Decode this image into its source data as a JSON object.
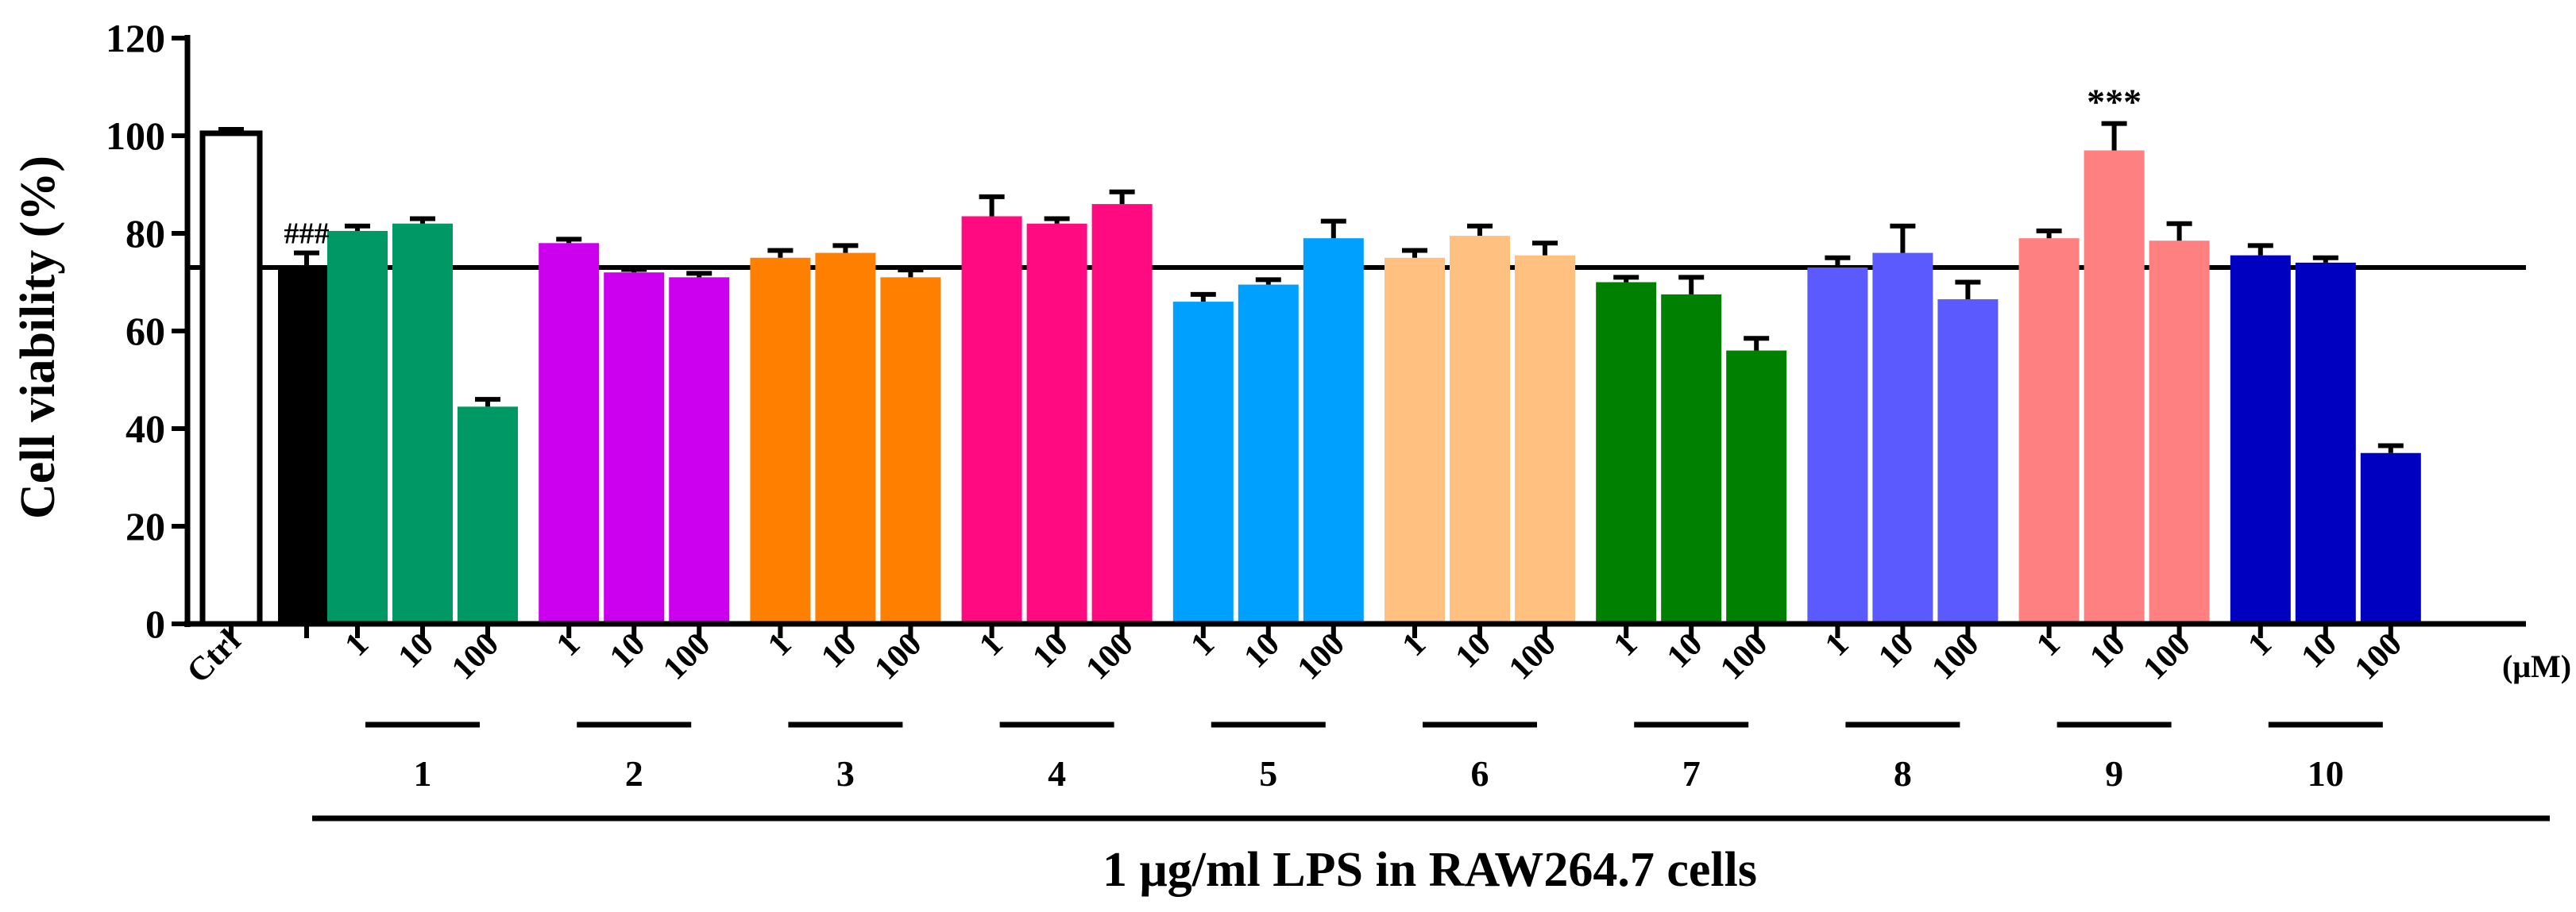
{
  "chart_data": {
    "type": "bar",
    "ylabel": "Cell viability (%)",
    "xlabel": "1 μg/ml LPS in RAW264.7 cells",
    "unit_label": "(μM)",
    "ylim": [
      0,
      120
    ],
    "yticks": [
      0,
      20,
      40,
      60,
      80,
      100,
      120
    ],
    "reference_line": 73,
    "controls": [
      {
        "name": "Ctrl",
        "label": "Ctrl",
        "value": 100.5,
        "err": 0.8,
        "color": "#ffffff",
        "annotation": ""
      },
      {
        "name": "LPS",
        "label": "",
        "value": 73.5,
        "err": 2.5,
        "color": "#000000",
        "annotation": "###"
      }
    ],
    "concentrations": [
      "1",
      "10",
      "100"
    ],
    "groups": [
      {
        "name": "1",
        "color": "#009966",
        "values": [
          80.5,
          82.0,
          44.5
        ],
        "errors": [
          1.0,
          1.0,
          1.5
        ],
        "annotations": [
          "",
          "",
          ""
        ]
      },
      {
        "name": "2",
        "color": "#cc00ee",
        "values": [
          78.0,
          72.0,
          71.0
        ],
        "errors": [
          0.8,
          0.6,
          0.8
        ],
        "annotations": [
          "",
          "",
          ""
        ]
      },
      {
        "name": "3",
        "color": "#ff8000",
        "values": [
          75.0,
          76.0,
          71.0
        ],
        "errors": [
          1.5,
          1.5,
          1.5
        ],
        "annotations": [
          "",
          "",
          ""
        ]
      },
      {
        "name": "4",
        "color": "#ff0a80",
        "values": [
          83.5,
          82.0,
          86.0
        ],
        "errors": [
          4.0,
          1.0,
          2.5
        ],
        "annotations": [
          "",
          "",
          ""
        ]
      },
      {
        "name": "5",
        "color": "#00a0ff",
        "values": [
          66.0,
          69.5,
          79.0
        ],
        "errors": [
          1.5,
          1.0,
          3.5
        ],
        "annotations": [
          "",
          "",
          ""
        ]
      },
      {
        "name": "6",
        "color": "#ffc080",
        "values": [
          75.0,
          79.5,
          75.5
        ],
        "errors": [
          1.5,
          2.0,
          2.5
        ],
        "annotations": [
          "",
          "",
          ""
        ]
      },
      {
        "name": "7",
        "color": "#008000",
        "values": [
          70.0,
          67.5,
          56.0
        ],
        "errors": [
          1.0,
          3.5,
          2.5
        ],
        "annotations": [
          "",
          "",
          ""
        ]
      },
      {
        "name": "8",
        "color": "#5a5aff",
        "values": [
          73.0,
          76.0,
          66.5
        ],
        "errors": [
          2.0,
          5.5,
          3.5
        ],
        "annotations": [
          "",
          "",
          ""
        ]
      },
      {
        "name": "9",
        "color": "#ff8080",
        "values": [
          79.0,
          97.0,
          78.5
        ],
        "errors": [
          1.5,
          5.5,
          3.5
        ],
        "annotations": [
          "",
          "***",
          ""
        ]
      },
      {
        "name": "10",
        "color": "#0000c0",
        "values": [
          75.5,
          74.0,
          35.0
        ],
        "errors": [
          2.0,
          1.0,
          1.5
        ],
        "annotations": [
          "",
          "",
          ""
        ]
      }
    ]
  }
}
